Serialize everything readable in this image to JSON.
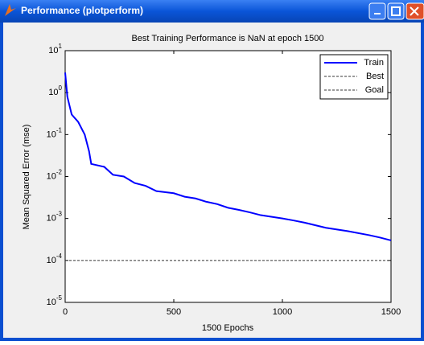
{
  "window": {
    "title": "Performance (plotperform)"
  },
  "chart_data": {
    "type": "line",
    "title": "Best Training Performance is NaN at epoch 1500",
    "xlabel": "1500 Epochs",
    "ylabel": "Mean Squared Error  (mse)",
    "xlim": [
      0,
      1500
    ],
    "xticks": [
      0,
      500,
      1000,
      1500
    ],
    "ylim": [
      1e-05,
      10
    ],
    "ylog": true,
    "yticks": [
      {
        "value": 1e-05,
        "label": "10^-5"
      },
      {
        "value": 0.0001,
        "label": "10^-4"
      },
      {
        "value": 0.001,
        "label": "10^-3"
      },
      {
        "value": 0.01,
        "label": "10^-2"
      },
      {
        "value": 0.1,
        "label": "10^-1"
      },
      {
        "value": 1,
        "label": "10^0"
      },
      {
        "value": 10,
        "label": "10^1"
      }
    ],
    "legend": "upper right",
    "series": [
      {
        "name": "Train",
        "color": "#0000ff",
        "x": [
          0,
          10,
          30,
          60,
          90,
          110,
          120,
          180,
          220,
          270,
          320,
          370,
          420,
          500,
          550,
          600,
          650,
          700,
          750,
          800,
          850,
          900,
          1000,
          1050,
          1100,
          1200,
          1300,
          1400,
          1450,
          1500
        ],
        "values": [
          3,
          0.8,
          0.3,
          0.2,
          0.1,
          0.04,
          0.02,
          0.017,
          0.011,
          0.01,
          0.007,
          0.006,
          0.0045,
          0.004,
          0.0033,
          0.003,
          0.0025,
          0.0022,
          0.0018,
          0.0016,
          0.0014,
          0.0012,
          0.001,
          0.0009,
          0.0008,
          0.0006,
          0.0005,
          0.0004,
          0.00035,
          0.0003
        ]
      },
      {
        "name": "Best",
        "color": "#333333",
        "dash": true
      },
      {
        "name": "Goal",
        "color": "#333333",
        "dash": true,
        "x": [
          0,
          1500
        ],
        "values": [
          0.0001,
          0.0001
        ]
      }
    ]
  }
}
